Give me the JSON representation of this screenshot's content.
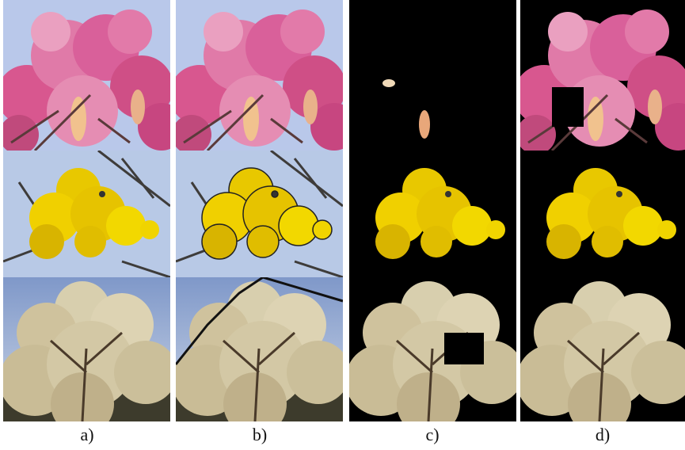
{
  "panels": {
    "labels": [
      "a)",
      "b)",
      "c)",
      "d)"
    ]
  }
}
